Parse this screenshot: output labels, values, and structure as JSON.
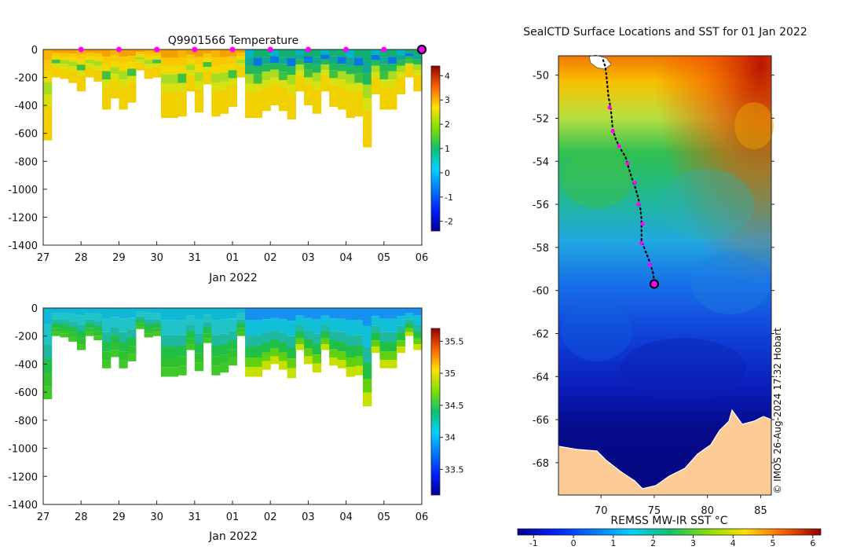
{
  "chart_data": [
    {
      "type": "heatmap",
      "title": "Q9901566  Temperature",
      "xlabel": "Jan 2022",
      "ylabel": "",
      "xlim": [
        0,
        10
      ],
      "ylim": [
        -1400,
        0
      ],
      "x_tick_labels": [
        "27",
        "28",
        "29",
        "30",
        "31",
        "01",
        "02",
        "03",
        "04",
        "05",
        "06"
      ],
      "y_ticks": [
        0,
        -200,
        -400,
        -600,
        -800,
        -1000,
        -1200,
        -1400
      ],
      "y_tick_labels": [
        "0",
        "-200",
        "-400",
        "-600",
        "-800",
        "-1000",
        "-1200",
        "-1400"
      ],
      "colorbar": {
        "min": -2.4,
        "max": 4.4,
        "ticks": [
          -2,
          -1,
          0,
          1,
          2,
          3,
          4
        ],
        "tick_labels": [
          "-2",
          "-1",
          "0",
          "1",
          "2",
          "3",
          "4"
        ]
      },
      "profile_depths": [
        -650,
        -200,
        -210,
        -240,
        -300,
        -200,
        -230,
        -430,
        -350,
        -430,
        -380,
        -150,
        -210,
        -200,
        -490,
        -490,
        -480,
        -300,
        -450,
        -250,
        -480,
        -460,
        -410,
        -200,
        -490,
        -490,
        -440,
        -400,
        -440,
        -500,
        -300,
        -400,
        -460,
        -300,
        -410,
        -430,
        -490,
        -480,
        -700,
        -320,
        -430,
        -430,
        -320,
        -200,
        -300
      ],
      "surface_markers_x": [
        1,
        2,
        3,
        4,
        5,
        6,
        7,
        8,
        9
      ],
      "latest_marker_x": 10
    },
    {
      "type": "heatmap",
      "title": "",
      "xlabel": "Jan 2022",
      "ylabel": "",
      "xlim": [
        0,
        10
      ],
      "ylim": [
        -1400,
        0
      ],
      "x_tick_labels": [
        "27",
        "28",
        "29",
        "30",
        "31",
        "01",
        "02",
        "03",
        "04",
        "05",
        "06"
      ],
      "y_ticks": [
        0,
        -200,
        -400,
        -600,
        -800,
        -1000,
        -1200,
        -1400
      ],
      "y_tick_labels": [
        "0",
        "-200",
        "-400",
        "-600",
        "-800",
        "-1000",
        "-1200",
        "-1400"
      ],
      "colorbar": {
        "min": 33.1,
        "max": 35.7,
        "ticks": [
          33.5,
          34,
          34.5,
          35,
          35.5
        ],
        "tick_labels": [
          "33.5",
          "34",
          "34.5",
          "35",
          "35.5"
        ]
      }
    },
    {
      "type": "heatmap",
      "title": "SealCTD Surface Locations and SST for 01 Jan 2022",
      "xlabel": "",
      "ylabel": "",
      "xlim": [
        66,
        86
      ],
      "ylim": [
        -69.5,
        -49.1
      ],
      "x_ticks": [
        70,
        75,
        80,
        85
      ],
      "x_tick_labels": [
        "70",
        "75",
        "80",
        "85"
      ],
      "y_ticks": [
        -50,
        -52,
        -54,
        -56,
        -58,
        -60,
        -62,
        -64,
        -66,
        -68
      ],
      "y_tick_labels": [
        "-50",
        "-52",
        "-54",
        "-56",
        "-58",
        "-60",
        "-62",
        "-64",
        "-66",
        "-68"
      ],
      "track": [
        [
          70.2,
          -49.3
        ],
        [
          70.4,
          -49.6
        ],
        [
          70.5,
          -50.0
        ],
        [
          70.6,
          -50.5
        ],
        [
          70.7,
          -51.0
        ],
        [
          70.9,
          -51.5
        ],
        [
          71.0,
          -52.0
        ],
        [
          71.1,
          -52.5
        ],
        [
          71.4,
          -53.0
        ],
        [
          71.8,
          -53.4
        ],
        [
          72.3,
          -53.8
        ],
        [
          72.6,
          -54.3
        ],
        [
          72.9,
          -54.8
        ],
        [
          73.2,
          -55.2
        ],
        [
          73.5,
          -55.7
        ],
        [
          73.7,
          -56.2
        ],
        [
          73.8,
          -56.7
        ],
        [
          73.8,
          -57.2
        ],
        [
          73.8,
          -57.7
        ],
        [
          74.2,
          -58.2
        ],
        [
          74.6,
          -58.7
        ],
        [
          74.9,
          -59.2
        ],
        [
          75.0,
          -59.7
        ]
      ],
      "surface_stations": [
        [
          70.8,
          -51.5
        ],
        [
          71.1,
          -52.6
        ],
        [
          71.7,
          -53.3
        ],
        [
          72.5,
          -54.1
        ],
        [
          73.2,
          -55.0
        ],
        [
          73.5,
          -56.0
        ],
        [
          73.9,
          -56.9
        ],
        [
          73.8,
          -57.8
        ],
        [
          74.6,
          -58.8
        ]
      ],
      "latest_station": [
        75.0,
        -59.7
      ],
      "colorbar": {
        "label": "REMSS MW-IR SST °C",
        "min": -1.4,
        "max": 6.2,
        "ticks": [
          -1,
          0,
          1,
          2,
          3,
          4,
          5,
          6
        ],
        "tick_labels": [
          "-1",
          "0",
          "1",
          "2",
          "3",
          "4",
          "5",
          "6"
        ]
      },
      "credit": "© IMOS 26-Aug-2024 17:32 Hobart"
    }
  ]
}
